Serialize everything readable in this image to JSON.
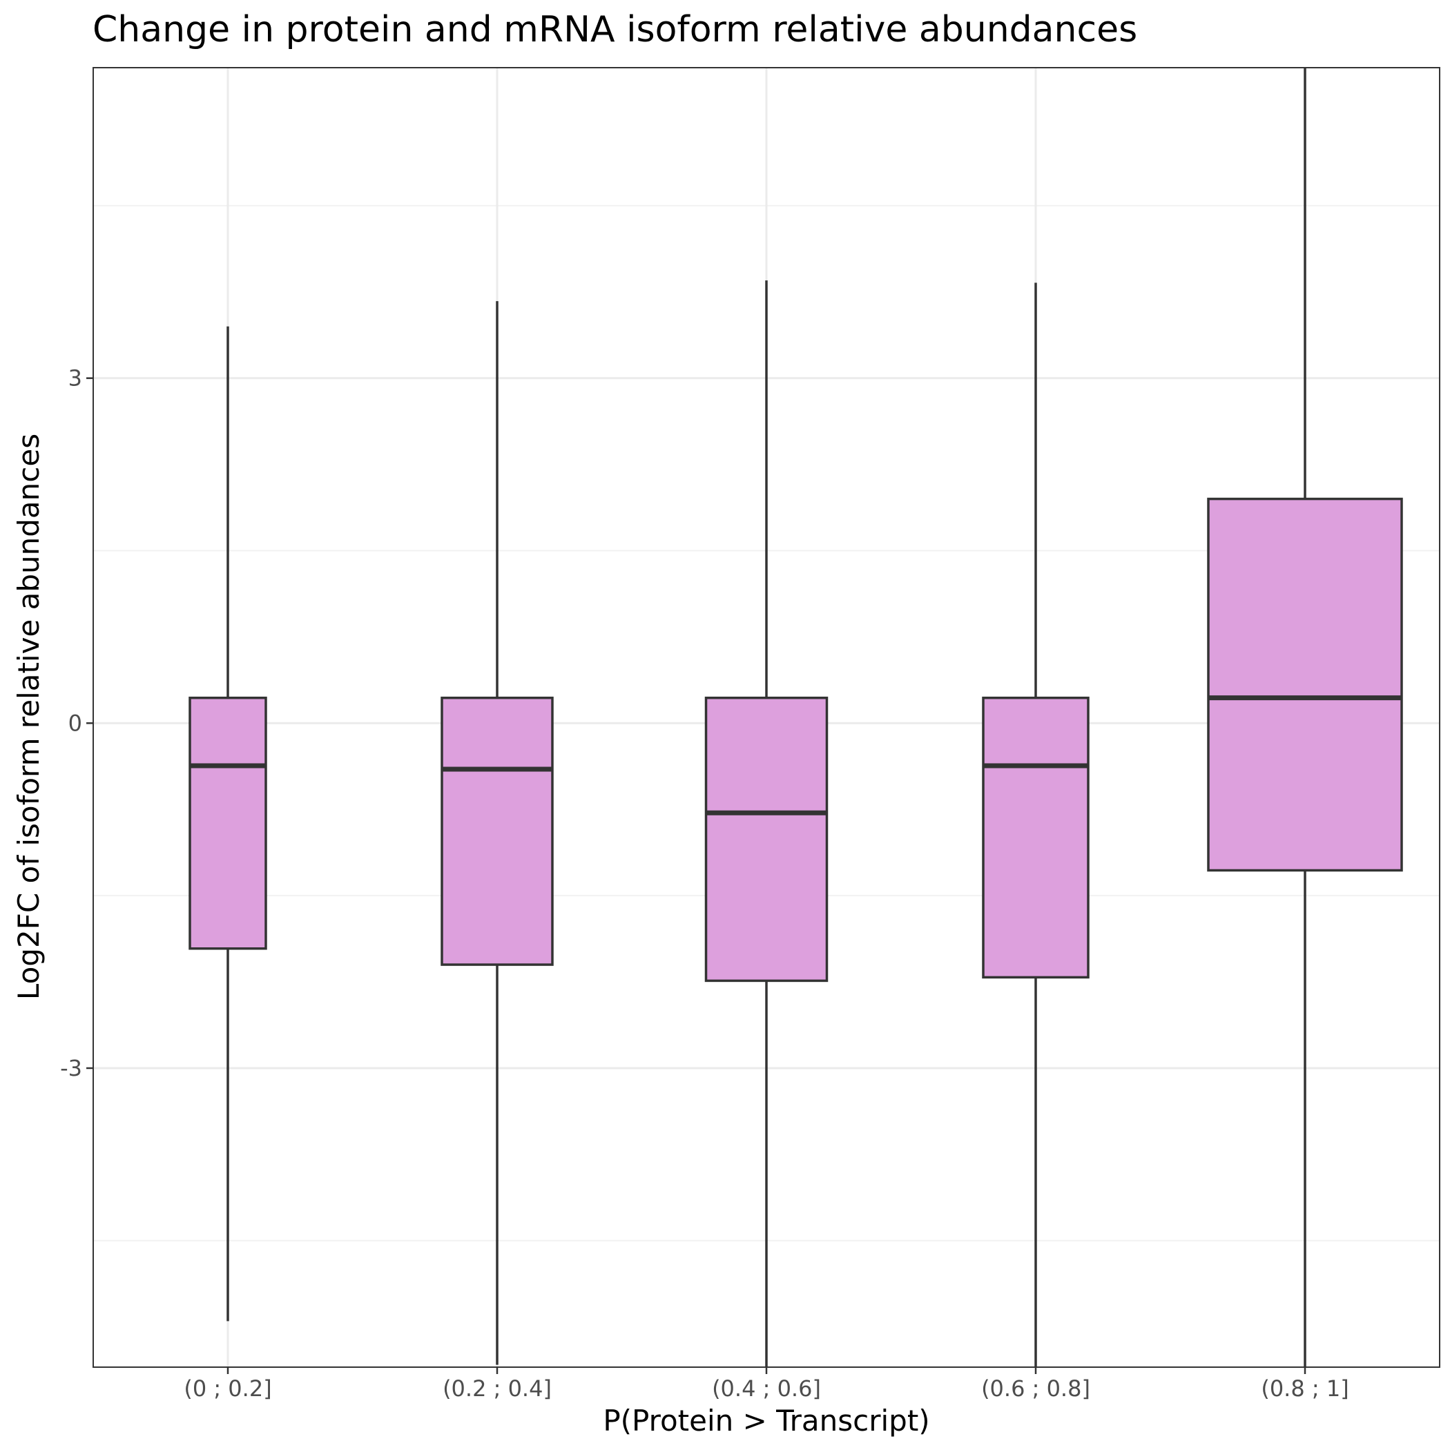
{
  "chart_data": {
    "type": "boxplot",
    "title": "Change in protein and mRNA isoform relative abundances",
    "xlabel": "P(Protein > Transcript)",
    "ylabel": "Log2FC of isoform relative abundances",
    "categories": [
      "(0 ; 0.2]",
      "(0.2 ; 0.4]",
      "(0.4 ; 0.6]",
      "(0.6 ; 0.8]",
      "(0.8 ; 1]"
    ],
    "yticks": [
      3,
      0,
      -3
    ],
    "ytick_labels": [
      "3",
      "0",
      "-3"
    ],
    "ylim": [
      -5.6,
      5.7
    ],
    "grid": true,
    "fill_color": "#dda0dd",
    "line_color": "#333333",
    "boxes": [
      {
        "category": "(0 ; 0.2]",
        "whisker_low": -5.2,
        "q1": -1.96,
        "median": -0.37,
        "q3": 0.22,
        "whisker_high": 3.45
      },
      {
        "category": "(0.2 ; 0.4]",
        "whisker_low": -5.58,
        "q1": -2.1,
        "median": -0.4,
        "q3": 0.22,
        "whisker_high": 3.67
      },
      {
        "category": "(0.4 ; 0.6]",
        "whisker_low": -5.6,
        "q1": -2.24,
        "median": -0.78,
        "q3": 0.22,
        "whisker_high": 3.85
      },
      {
        "category": "(0.6 ; 0.8]",
        "whisker_low": -5.6,
        "q1": -2.21,
        "median": -0.37,
        "q3": 0.22,
        "whisker_high": 3.83
      },
      {
        "category": "(0.8 ; 1]",
        "whisker_low": -5.6,
        "q1": -1.28,
        "median": 0.22,
        "q3": 1.95,
        "whisker_high": 5.7
      }
    ]
  }
}
